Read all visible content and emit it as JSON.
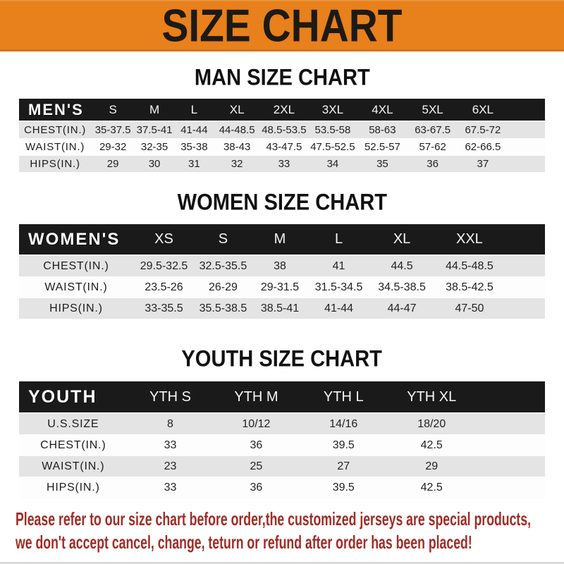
{
  "colors": {
    "accent": "#E8801B",
    "header_black": "#1A1A1A",
    "row_gray": "#E4E4E4",
    "note_red": "#A12C27"
  },
  "banner": {
    "title": "SIZE CHART"
  },
  "sections": {
    "men": {
      "heading": "MAN SIZE CHART",
      "table": {
        "corner": "MEN'S",
        "sizes": [
          "S",
          "M",
          "L",
          "XL",
          "2XL",
          "3XL",
          "4XL",
          "5XL",
          "6XL"
        ],
        "rows": [
          {
            "label": "CHEST(IN.)",
            "values": [
              "35-37.5",
              "37.5-41",
              "41-44",
              "44-48.5",
              "48.5-53.5",
              "53.5-58",
              "58-63",
              "63-67.5",
              "67.5-72"
            ]
          },
          {
            "label": "WAIST(IN.)",
            "values": [
              "29-32",
              "32-35",
              "35-38",
              "38-43",
              "43-47.5",
              "47.5-52.5",
              "52.5-57",
              "57-62",
              "62-66.5"
            ]
          },
          {
            "label": "HIPS(IN.)",
            "values": [
              "29",
              "30",
              "31",
              "32",
              "33",
              "34",
              "35",
              "36",
              "37"
            ]
          }
        ]
      }
    },
    "women": {
      "heading": "WOMEN SIZE CHART",
      "table": {
        "corner": "WOMEN'S",
        "sizes": [
          "XS",
          "S",
          "M",
          "L",
          "XL",
          "XXL"
        ],
        "rows": [
          {
            "label": "CHEST(IN.)",
            "values": [
              "29.5-32.5",
              "32.5-35.5",
              "38",
              "41",
              "44.5",
              "44.5-48.5"
            ]
          },
          {
            "label": "WAIST(IN.)",
            "values": [
              "23.5-26",
              "26-29",
              "29-31.5",
              "31.5-34.5",
              "34.5-38.5",
              "38.5-42.5"
            ]
          },
          {
            "label": "HIPS(IN.)",
            "values": [
              "33-35.5",
              "35.5-38.5",
              "38.5-41",
              "41-44",
              "44-47",
              "47-50"
            ]
          }
        ]
      }
    },
    "youth": {
      "heading": "YOUTH SIZE CHART",
      "table": {
        "corner": "YOUTH",
        "sizes": [
          "YTH S",
          "YTH M",
          "YTH L",
          "YTH XL"
        ],
        "rows": [
          {
            "label": "U.S.SIZE",
            "values": [
              "8",
              "10/12",
              "14/16",
              "18/20"
            ]
          },
          {
            "label": "CHEST(IN.)",
            "values": [
              "33",
              "36",
              "39.5",
              "42.5"
            ]
          },
          {
            "label": "WAIST(IN.)",
            "values": [
              "23",
              "25",
              "27",
              "29"
            ]
          },
          {
            "label": "HIPS(IN.)",
            "values": [
              "33",
              "36",
              "39.5",
              "42.5"
            ]
          }
        ]
      }
    }
  },
  "note": {
    "line1": "Please refer to our size chart before order,the customized jerseys are special products,",
    "line2": "we don't accept cancel, change, teturn or refund after order has been placed!"
  }
}
